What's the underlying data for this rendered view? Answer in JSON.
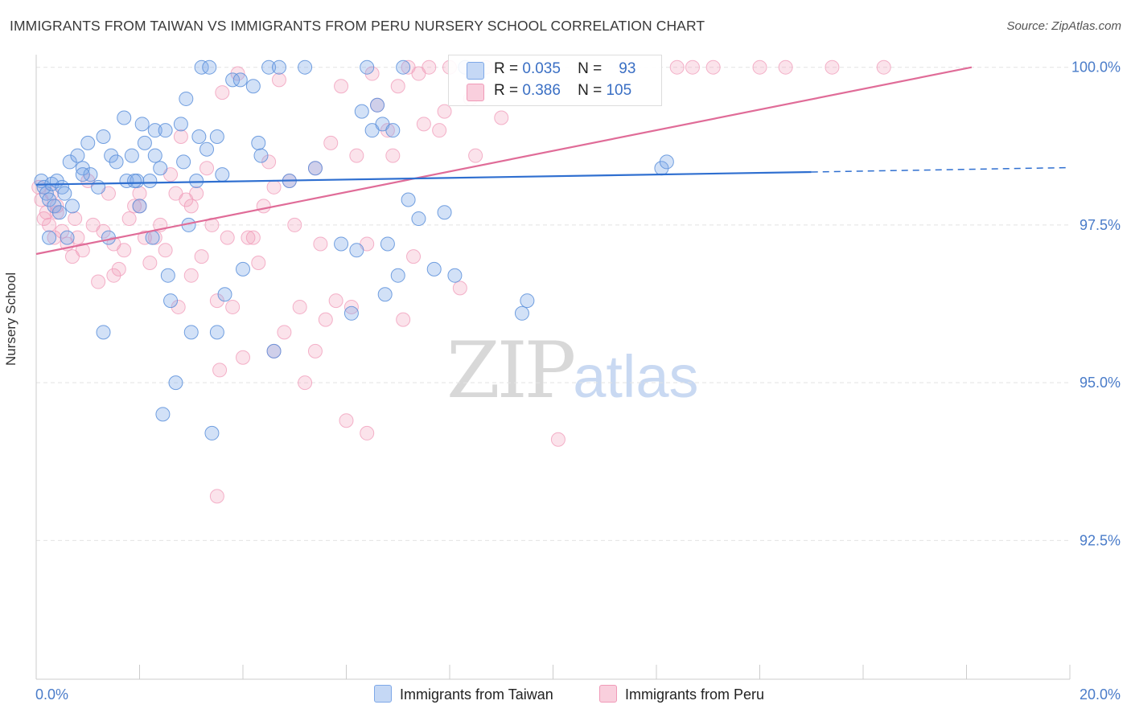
{
  "header": {
    "title": "IMMIGRANTS FROM TAIWAN VS IMMIGRANTS FROM PERU NURSERY SCHOOL CORRELATION CHART",
    "source": "Source: ZipAtlas.com"
  },
  "colors": {
    "taiwan": "#7ea8e8",
    "taiwan_line": "#2f6fd0",
    "peru": "#f09ab8",
    "peru_line": "#e06c98",
    "axis_text": "#4a7cc9",
    "grid": "#e4e4e4"
  },
  "legend": {
    "row1": {
      "r_label": "R =",
      "r_value": "0.035",
      "n_label": "N =",
      "n_value": "93"
    },
    "row2": {
      "r_label": "R =",
      "r_value": "0.386",
      "n_label": "N =",
      "n_value": "105"
    }
  },
  "bottom_legend": {
    "taiwan": "Immigrants from Taiwan",
    "peru": "Immigrants from Peru"
  },
  "watermark": {
    "zip": "ZIP",
    "atlas": "atlas"
  },
  "chart_data": {
    "type": "scatter",
    "title": "IMMIGRANTS FROM TAIWAN VS IMMIGRANTS FROM PERU NURSERY SCHOOL CORRELATION CHART",
    "xlabel": "",
    "ylabel": "Nursery School",
    "xlim": [
      0.0,
      20.0
    ],
    "ylim": [
      90.3,
      100.2
    ],
    "x_tick_labels": [
      "0.0%",
      "20.0%"
    ],
    "y_ticks": [
      92.5,
      95.0,
      97.5,
      100.0
    ],
    "y_tick_labels": [
      "92.5%",
      "95.0%",
      "97.5%",
      "100.0%"
    ],
    "grid": true,
    "series": [
      {
        "name": "Immigrants from Taiwan",
        "r": 0.035,
        "n": 93,
        "trend": {
          "x0": 0.0,
          "y0": 98.14,
          "x1": 15.0,
          "y1": 98.34,
          "dashed_to_x": 20.0,
          "dashed_to_y": 98.41
        },
        "points": [
          [
            0.1,
            98.2
          ],
          [
            0.15,
            98.1
          ],
          [
            0.2,
            98.0
          ],
          [
            0.25,
            97.9
          ],
          [
            0.3,
            98.15
          ],
          [
            0.35,
            97.8
          ],
          [
            0.4,
            98.2
          ],
          [
            0.45,
            97.7
          ],
          [
            0.5,
            98.1
          ],
          [
            0.55,
            98.0
          ],
          [
            0.6,
            97.3
          ],
          [
            0.65,
            98.5
          ],
          [
            0.7,
            97.8
          ],
          [
            0.8,
            98.6
          ],
          [
            0.9,
            98.4
          ],
          [
            1.0,
            98.8
          ],
          [
            1.05,
            98.3
          ],
          [
            1.2,
            98.1
          ],
          [
            1.3,
            98.9
          ],
          [
            1.45,
            98.6
          ],
          [
            1.55,
            98.5
          ],
          [
            1.7,
            99.2
          ],
          [
            1.75,
            98.2
          ],
          [
            1.85,
            98.6
          ],
          [
            1.95,
            98.2
          ],
          [
            2.0,
            97.8
          ],
          [
            2.05,
            99.1
          ],
          [
            2.1,
            98.8
          ],
          [
            2.2,
            98.2
          ],
          [
            2.25,
            97.3
          ],
          [
            2.3,
            99.0
          ],
          [
            2.4,
            98.4
          ],
          [
            2.5,
            99.0
          ],
          [
            2.55,
            96.7
          ],
          [
            2.6,
            96.3
          ],
          [
            2.7,
            95.0
          ],
          [
            2.8,
            99.1
          ],
          [
            2.85,
            98.5
          ],
          [
            2.9,
            99.5
          ],
          [
            2.95,
            97.5
          ],
          [
            3.0,
            95.8
          ],
          [
            3.1,
            98.2
          ],
          [
            3.15,
            98.9
          ],
          [
            3.2,
            100.0
          ],
          [
            3.3,
            98.7
          ],
          [
            3.35,
            100.0
          ],
          [
            3.5,
            98.9
          ],
          [
            3.6,
            98.3
          ],
          [
            3.65,
            96.4
          ],
          [
            3.8,
            99.8
          ],
          [
            3.95,
            99.8
          ],
          [
            4.2,
            99.7
          ],
          [
            4.3,
            98.8
          ],
          [
            4.35,
            98.6
          ],
          [
            4.5,
            100.0
          ],
          [
            4.6,
            95.5
          ],
          [
            4.7,
            100.0
          ],
          [
            4.9,
            98.2
          ],
          [
            5.2,
            100.0
          ],
          [
            5.4,
            98.4
          ],
          [
            5.9,
            97.2
          ],
          [
            6.1,
            96.1
          ],
          [
            6.2,
            97.1
          ],
          [
            6.3,
            99.3
          ],
          [
            6.4,
            100.0
          ],
          [
            6.5,
            99.0
          ],
          [
            6.6,
            99.4
          ],
          [
            6.7,
            99.1
          ],
          [
            6.75,
            96.4
          ],
          [
            6.8,
            97.2
          ],
          [
            6.9,
            99.0
          ],
          [
            7.0,
            96.7
          ],
          [
            7.1,
            100.0
          ],
          [
            7.2,
            97.9
          ],
          [
            7.4,
            97.6
          ],
          [
            7.7,
            96.8
          ],
          [
            7.9,
            97.7
          ],
          [
            8.1,
            96.7
          ],
          [
            8.3,
            100.0
          ],
          [
            9.4,
            96.1
          ],
          [
            9.5,
            96.3
          ],
          [
            12.1,
            98.4
          ],
          [
            12.2,
            98.5
          ],
          [
            1.3,
            95.8
          ],
          [
            2.45,
            94.5
          ],
          [
            3.4,
            94.2
          ],
          [
            0.25,
            97.3
          ],
          [
            0.9,
            98.3
          ],
          [
            1.4,
            97.3
          ],
          [
            1.9,
            98.2
          ],
          [
            2.3,
            98.6
          ],
          [
            3.5,
            95.8
          ],
          [
            4.0,
            96.8
          ]
        ]
      },
      {
        "name": "Immigrants from Peru",
        "r": 0.386,
        "n": 105,
        "trend": {
          "x0": 0.0,
          "y0": 97.04,
          "x1": 18.1,
          "y1": 100.0
        },
        "points": [
          [
            0.05,
            98.1
          ],
          [
            0.1,
            97.9
          ],
          [
            0.15,
            97.6
          ],
          [
            0.2,
            97.7
          ],
          [
            0.25,
            97.5
          ],
          [
            0.3,
            98.0
          ],
          [
            0.35,
            97.3
          ],
          [
            0.4,
            97.8
          ],
          [
            0.5,
            97.4
          ],
          [
            0.6,
            97.2
          ],
          [
            0.7,
            97.0
          ],
          [
            0.75,
            97.6
          ],
          [
            0.8,
            97.3
          ],
          [
            0.9,
            97.1
          ],
          [
            1.0,
            98.2
          ],
          [
            1.1,
            97.5
          ],
          [
            1.2,
            96.6
          ],
          [
            1.3,
            97.4
          ],
          [
            1.4,
            98.0
          ],
          [
            1.5,
            97.2
          ],
          [
            1.6,
            96.8
          ],
          [
            1.7,
            97.1
          ],
          [
            1.8,
            97.6
          ],
          [
            1.9,
            97.8
          ],
          [
            2.0,
            98.0
          ],
          [
            2.1,
            97.3
          ],
          [
            2.2,
            96.9
          ],
          [
            2.3,
            97.3
          ],
          [
            2.4,
            97.5
          ],
          [
            2.5,
            97.1
          ],
          [
            2.6,
            98.3
          ],
          [
            2.7,
            98.0
          ],
          [
            2.75,
            96.2
          ],
          [
            2.8,
            98.9
          ],
          [
            2.9,
            97.9
          ],
          [
            3.0,
            96.7
          ],
          [
            3.1,
            98.0
          ],
          [
            3.2,
            97.0
          ],
          [
            3.3,
            98.4
          ],
          [
            3.4,
            97.5
          ],
          [
            3.5,
            96.3
          ],
          [
            3.55,
            95.2
          ],
          [
            3.6,
            99.6
          ],
          [
            3.7,
            97.3
          ],
          [
            3.8,
            96.2
          ],
          [
            3.9,
            99.9
          ],
          [
            4.0,
            95.4
          ],
          [
            4.2,
            97.3
          ],
          [
            4.3,
            96.9
          ],
          [
            4.4,
            97.8
          ],
          [
            4.5,
            98.5
          ],
          [
            4.6,
            98.1
          ],
          [
            4.7,
            99.8
          ],
          [
            4.8,
            95.8
          ],
          [
            4.9,
            98.2
          ],
          [
            5.0,
            97.5
          ],
          [
            5.1,
            96.2
          ],
          [
            5.2,
            95.0
          ],
          [
            5.4,
            95.5
          ],
          [
            5.5,
            97.2
          ],
          [
            5.6,
            96.0
          ],
          [
            5.7,
            98.8
          ],
          [
            5.8,
            96.3
          ],
          [
            5.9,
            99.7
          ],
          [
            6.0,
            94.4
          ],
          [
            6.1,
            96.2
          ],
          [
            6.2,
            98.6
          ],
          [
            6.4,
            97.2
          ],
          [
            6.5,
            99.9
          ],
          [
            6.6,
            99.4
          ],
          [
            6.8,
            99.0
          ],
          [
            6.9,
            98.6
          ],
          [
            7.0,
            99.7
          ],
          [
            7.1,
            96.0
          ],
          [
            7.2,
            100.0
          ],
          [
            7.3,
            97.0
          ],
          [
            7.4,
            99.9
          ],
          [
            7.5,
            99.1
          ],
          [
            7.6,
            100.0
          ],
          [
            7.8,
            99.0
          ],
          [
            7.9,
            99.3
          ],
          [
            8.0,
            100.0
          ],
          [
            8.2,
            96.5
          ],
          [
            8.4,
            99.5
          ],
          [
            8.5,
            98.6
          ],
          [
            8.7,
            100.0
          ],
          [
            9.0,
            99.2
          ],
          [
            10.1,
            94.1
          ],
          [
            11.4,
            100.0
          ],
          [
            12.4,
            100.0
          ],
          [
            12.7,
            100.0
          ],
          [
            13.1,
            100.0
          ],
          [
            14.0,
            100.0
          ],
          [
            14.5,
            100.0
          ],
          [
            15.4,
            100.0
          ],
          [
            16.4,
            100.0
          ],
          [
            3.5,
            93.2
          ],
          [
            4.6,
            95.5
          ],
          [
            6.4,
            94.2
          ],
          [
            2.0,
            97.8
          ],
          [
            0.4,
            97.7
          ],
          [
            1.5,
            96.7
          ],
          [
            3.0,
            97.8
          ],
          [
            4.1,
            97.3
          ],
          [
            5.4,
            98.4
          ]
        ]
      }
    ]
  }
}
